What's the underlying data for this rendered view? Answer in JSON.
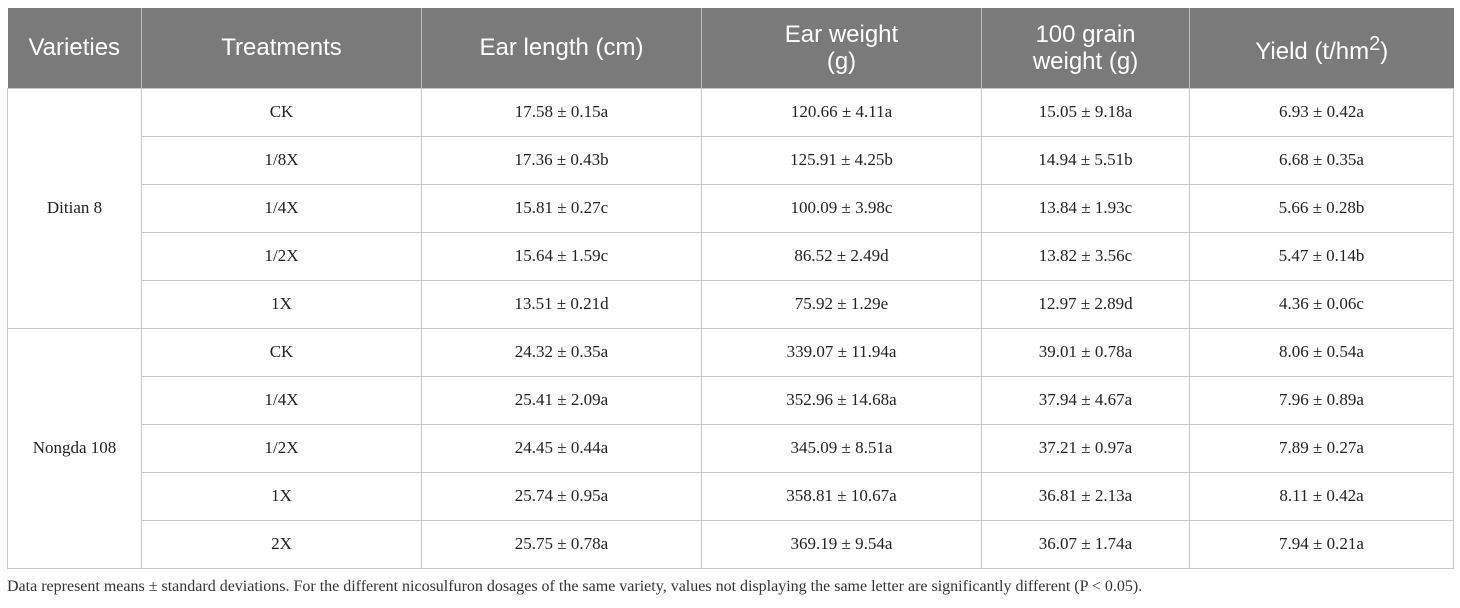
{
  "headers": {
    "varieties": "Varieties",
    "treatments": "Treatments",
    "ear_length": "Ear length (cm)",
    "ear_weight_l1": "Ear weight",
    "ear_weight_l2": "(g)",
    "grain_weight_l1": "100 grain",
    "grain_weight_l2": "weight (g)",
    "yield_prefix": "Yield (t/hm",
    "yield_sup": "2",
    "yield_suffix": ")"
  },
  "groups": [
    {
      "variety": "Ditian 8",
      "rows": [
        {
          "treatment": "CK",
          "ear_length": "17.58 ± 0.15a",
          "ear_weight": "120.66 ± 4.11a",
          "grain_weight": "15.05 ± 9.18a",
          "yield": "6.93 ± 0.42a"
        },
        {
          "treatment": "1/8X",
          "ear_length": "17.36 ± 0.43b",
          "ear_weight": "125.91 ± 4.25b",
          "grain_weight": "14.94 ± 5.51b",
          "yield": "6.68 ± 0.35a"
        },
        {
          "treatment": "1/4X",
          "ear_length": "15.81 ± 0.27c",
          "ear_weight": "100.09 ± 3.98c",
          "grain_weight": "13.84 ± 1.93c",
          "yield": "5.66 ± 0.28b"
        },
        {
          "treatment": "1/2X",
          "ear_length": "15.64 ± 1.59c",
          "ear_weight": "86.52 ± 2.49d",
          "grain_weight": "13.82 ± 3.56c",
          "yield": "5.47 ± 0.14b"
        },
        {
          "treatment": "1X",
          "ear_length": "13.51 ± 0.21d",
          "ear_weight": "75.92 ± 1.29e",
          "grain_weight": "12.97 ± 2.89d",
          "yield": "4.36 ± 0.06c"
        }
      ]
    },
    {
      "variety": "Nongda 108",
      "rows": [
        {
          "treatment": "CK",
          "ear_length": "24.32 ± 0.35a",
          "ear_weight": "339.07 ± 11.94a",
          "grain_weight": "39.01 ± 0.78a",
          "yield": "8.06 ± 0.54a"
        },
        {
          "treatment": "1/4X",
          "ear_length": "25.41 ± 2.09a",
          "ear_weight": "352.96 ± 14.68a",
          "grain_weight": "37.94 ± 4.67a",
          "yield": "7.96 ± 0.89a"
        },
        {
          "treatment": "1/2X",
          "ear_length": "24.45 ± 0.44a",
          "ear_weight": "345.09 ± 8.51a",
          "grain_weight": "37.21 ± 0.97a",
          "yield": "7.89 ± 0.27a"
        },
        {
          "treatment": "1X",
          "ear_length": "25.74 ± 0.95a",
          "ear_weight": "358.81 ± 10.67a",
          "grain_weight": "36.81 ± 2.13a",
          "yield": "8.11 ± 0.42a"
        },
        {
          "treatment": "2X",
          "ear_length": "25.75 ± 0.78a",
          "ear_weight": "369.19 ± 9.54a",
          "grain_weight": "36.07 ± 1.74a",
          "yield": "7.94 ± 0.21a"
        }
      ]
    }
  ],
  "footnote": "Data represent means ± standard deviations. For the different nicosulfuron dosages of the same variety, values not displaying the same letter are significantly different (P < 0.05).",
  "colors": {
    "header_bg": "#7a7a7a",
    "border": "#c9c9c9"
  }
}
